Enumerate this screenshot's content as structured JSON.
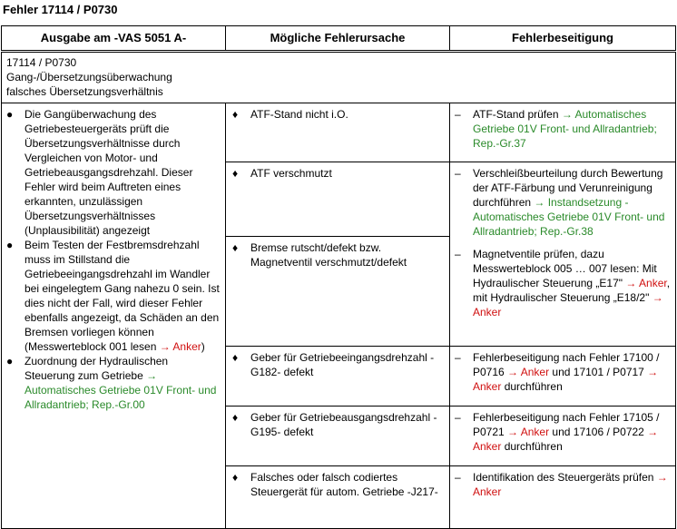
{
  "title": "Fehler 17114 / P0730",
  "colors": {
    "link_green": "#2a8a2a",
    "link_red": "#d01010"
  },
  "headers": [
    "Ausgabe am -VAS 5051 A-",
    "Mögliche Fehlerursache",
    "Fehlerbeseitigung"
  ],
  "summary": [
    "17114 / P0730",
    "Gang-/Übersetzungsüberwachung",
    "falsches Übersetzungsverhältnis"
  ],
  "output_items": [
    [
      {
        "t": "Die Gangüberwachung des Getriebesteuergeräts prüft die Übersetzungsverhältnisse durch Vergleichen von Motor- und Getriebeausgangsdrehzahl. Dieser Fehler wird beim Auftreten eines erkannten, unzulässigen Übersetzungsverhältnisses (Unplausibilität) angezeigt"
      }
    ],
    [
      {
        "t": "Beim Testen der Festbremsdrehzahl muss im Stillstand die Getriebeeingangsdrehzahl im Wandler bei eingelegtem Gang nahezu 0 sein. Ist dies nicht der Fall, wird dieser Fehler ebenfalls angezeigt, da Schäden an den Bremsen vorliegen können (Messwerteblock 001 lesen "
      },
      {
        "t": "→ Anker",
        "c": "r"
      },
      {
        "t": ")"
      }
    ],
    [
      {
        "t": "Zuordnung der Hydraulischen Steuerung zum Getriebe "
      },
      {
        "t": "→ Automatisches Getriebe 01V Front- und Allradantrieb; Rep.-Gr.00",
        "c": "g"
      }
    ]
  ],
  "causes": [
    "ATF-Stand nicht i.O.",
    "ATF verschmutzt",
    "Bremse rutscht/defekt bzw. Magnetventil verschmutzt/defekt",
    "Geber für Getriebeeingangsdrehzahl -G182- defekt",
    "Geber für Getriebeausgangsdrehzahl -G195- defekt",
    "Falsches oder falsch codiertes Steuergerät für autom. Getriebe -J217-"
  ],
  "fixes": [
    [
      [
        {
          "t": "ATF-Stand prüfen "
        },
        {
          "t": "→ Automatisches Getriebe 01V Front- und Allradantrieb; Rep.-Gr.37",
          "c": "g"
        }
      ]
    ],
    [
      [
        {
          "t": "Verschleißbeurteilung durch Bewertung der ATF-Färbung und Verunreinigung durchführen "
        },
        {
          "t": "→ Instandsetzung - Automatisches Getriebe 01V Front- und Allradantrieb; Rep.-Gr.38",
          "c": "g"
        }
      ],
      [
        {
          "t": "Magnetventile prüfen, dazu Messwerteblock 005 … 007 lesen: Mit Hydraulischer Steuerung „E17\" "
        },
        {
          "t": "→ Anker",
          "c": "r"
        },
        {
          "t": ", mit Hydraulischer Steuerung „E18/2\" "
        },
        {
          "t": "→ Anker",
          "c": "r"
        }
      ]
    ],
    [
      [
        {
          "t": "Fehlerbeseitigung nach Fehler 17100 / P0716 "
        },
        {
          "t": "→ Anker",
          "c": "r"
        },
        {
          "t": " und 17101 / P0717 "
        },
        {
          "t": "→ Anker",
          "c": "r"
        },
        {
          "t": " durchführen"
        }
      ]
    ],
    [
      [
        {
          "t": "Fehlerbeseitigung nach Fehler 17105 / P0721 "
        },
        {
          "t": "→ Anker",
          "c": "r"
        },
        {
          "t": " und 17106 / P0722 "
        },
        {
          "t": "→ Anker",
          "c": "r"
        },
        {
          "t": " durchführen"
        }
      ]
    ],
    [
      [
        {
          "t": "Identifikation des Steuergeräts prüfen "
        },
        {
          "t": "→ Anker",
          "c": "r"
        }
      ]
    ]
  ],
  "markers": {
    "bullet": "●",
    "diamond": "♦",
    "dash": "–"
  }
}
